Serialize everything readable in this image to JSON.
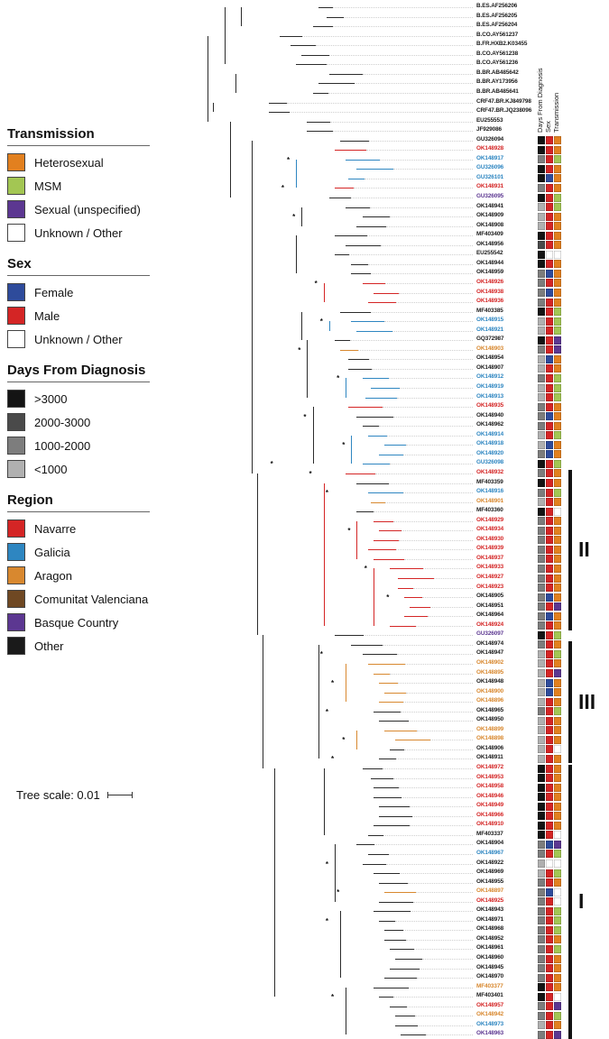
{
  "legend": {
    "sections": [
      {
        "id": "transmission",
        "title": "Transmission",
        "items": [
          {
            "label": "Heterosexual",
            "color": "#E2801F"
          },
          {
            "label": "MSM",
            "color": "#A3C653"
          },
          {
            "label": "Sexual (unspecified)",
            "color": "#5C3791"
          },
          {
            "label": "Unknown / Other",
            "color": "#FFFFFF"
          }
        ]
      },
      {
        "id": "sex",
        "title": "Sex",
        "items": [
          {
            "label": "Female",
            "color": "#2E4B9B"
          },
          {
            "label": "Male",
            "color": "#D42525"
          },
          {
            "label": "Unknown / Other",
            "color": "#FFFFFF"
          }
        ]
      },
      {
        "id": "days",
        "title": "Days From Diagnosis",
        "items": [
          {
            "label": ">3000",
            "color": "#141414"
          },
          {
            "label": "2000-3000",
            "color": "#4A4A4A"
          },
          {
            "label": "1000-2000",
            "color": "#7D7D7D"
          },
          {
            "label": "<1000",
            "color": "#B0B0B0"
          }
        ]
      },
      {
        "id": "region",
        "title": "Region",
        "items": [
          {
            "label": "Navarre",
            "color": "#D42525"
          },
          {
            "label": "Galicia",
            "color": "#2E86C1"
          },
          {
            "label": "Aragon",
            "color": "#D8882F"
          },
          {
            "label": "Comunitat Valenciana",
            "color": "#6F4823"
          },
          {
            "label": "Basque Country",
            "color": "#5C3791"
          },
          {
            "label": "Other",
            "color": "#1A1A1A"
          }
        ]
      }
    ],
    "scale_label": "Tree scale: 0.01"
  },
  "annotation_headers": [
    "Days From Diagnosis",
    "Sex",
    "Transmission"
  ],
  "clades": [
    {
      "label": "II",
      "from": 49,
      "to": 65
    },
    {
      "label": "III",
      "from": 67,
      "to": 79
    },
    {
      "label": "I",
      "from": 80,
      "to": 108
    }
  ],
  "codes": {
    "region": {
      "nav": "Navarre",
      "gal": "Galicia",
      "ara": "Aragon",
      "val": "Comunitat Valenciana",
      "bas": "Basque Country",
      "oth": "Other"
    },
    "days": {
      "a": ">3000",
      "b": "2000-3000",
      "c": "1000-2000",
      "d": "<1000"
    },
    "sex": {
      "f": "Female",
      "m": "Male",
      "u": "Unknown / Other"
    },
    "transmission": {
      "h": "Heterosexual",
      "g": "MSM",
      "p": "Sexual (unspecified)",
      "u": "Unknown / Other"
    }
  },
  "colors": {
    "days": {
      "a": "#141414",
      "b": "#4A4A4A",
      "c": "#7D7D7D",
      "d": "#B0B0B0"
    },
    "sex": {
      "f": "#2E4B9B",
      "m": "#D42525",
      "u": "#FFFFFF"
    },
    "transmission": {
      "h": "#E2801F",
      "g": "#A3C653",
      "p": "#5C3791",
      "u": "#FFFFFF"
    },
    "region": {
      "nav": "#D42525",
      "gal": "#2E86C1",
      "ara": "#D8882F",
      "val": "#6F4823",
      "bas": "#5C3791",
      "oth": "#1A1A1A"
    },
    "branch_default": "#2B2B2B",
    "leader": "#CFCFCF"
  },
  "taxa_fields": [
    "label",
    "region",
    "bold",
    "depth",
    "days",
    "sex",
    "transmission",
    "branch_color"
  ],
  "taxa": [
    [
      "B.ES.AF256206",
      "oth",
      0,
      0.44,
      null,
      null,
      null,
      null
    ],
    [
      "B.ES.AF256205",
      "oth",
      0,
      0.47,
      null,
      null,
      null,
      null
    ],
    [
      "B.ES.AF256204",
      "oth",
      0,
      0.42,
      null,
      null,
      null,
      null
    ],
    [
      "B.CO.AY561237",
      "oth",
      0,
      0.3,
      null,
      null,
      null,
      null
    ],
    [
      "B.FR.HXB2.K03455",
      "oth",
      1,
      0.34,
      null,
      null,
      null,
      null
    ],
    [
      "B.CO.AY561238",
      "oth",
      0,
      0.38,
      null,
      null,
      null,
      null
    ],
    [
      "B.CO.AY561236",
      "oth",
      0,
      0.36,
      null,
      null,
      null,
      null
    ],
    [
      "B.BR.AB485642",
      "oth",
      0,
      0.48,
      null,
      null,
      null,
      null
    ],
    [
      "B.BR.AY173956",
      "oth",
      0,
      0.44,
      null,
      null,
      null,
      null
    ],
    [
      "B.BR.AB485641",
      "oth",
      0,
      0.42,
      null,
      null,
      null,
      null
    ],
    [
      "CRF47.BR.KJ849798",
      "oth",
      0,
      0.26,
      null,
      null,
      null,
      null
    ],
    [
      "CRF47.BR.JQ238096",
      "oth",
      0,
      0.26,
      null,
      null,
      null,
      null
    ],
    [
      "EU255553",
      "oth",
      1,
      0.4,
      null,
      null,
      null,
      null
    ],
    [
      "JF929086",
      "oth",
      1,
      0.4,
      null,
      null,
      null,
      null
    ],
    [
      "GU326094",
      "oth",
      0,
      0.52,
      "a",
      "m",
      "h",
      null
    ],
    [
      "OK148928",
      "nav",
      0,
      0.5,
      "a",
      "m",
      "h",
      "nav"
    ],
    [
      "OK148917",
      "gal",
      0,
      0.54,
      "c",
      "m",
      "g",
      "gal"
    ],
    [
      "GU326096",
      "gal",
      0,
      0.58,
      "a",
      "m",
      "h",
      "gal"
    ],
    [
      "GU326101",
      "gal",
      0,
      0.55,
      "a",
      "f",
      "h",
      "gal"
    ],
    [
      "OK148931",
      "nav",
      0,
      0.5,
      "c",
      "m",
      "h",
      "nav"
    ],
    [
      "GU326095",
      "bas",
      0,
      0.48,
      "a",
      "m",
      "g",
      null
    ],
    [
      "OK148941",
      "oth",
      0,
      0.54,
      "d",
      "m",
      "g",
      null
    ],
    [
      "OK148909",
      "oth",
      0,
      0.6,
      "d",
      "m",
      "h",
      null
    ],
    [
      "OK148908",
      "oth",
      0,
      0.58,
      "d",
      "m",
      "h",
      null
    ],
    [
      "MF403409",
      "oth",
      0,
      0.5,
      "a",
      "m",
      "h",
      null
    ],
    [
      "OK148956",
      "oth",
      0,
      0.54,
      "b",
      "m",
      "h",
      null
    ],
    [
      "EU255542",
      "oth",
      1,
      0.5,
      "a",
      "u",
      "u",
      null
    ],
    [
      "OK148944",
      "oth",
      0,
      0.56,
      "a",
      "m",
      "h",
      null
    ],
    [
      "OK148959",
      "oth",
      0,
      0.56,
      "c",
      "f",
      "h",
      null
    ],
    [
      "OK148926",
      "nav",
      0,
      0.6,
      "c",
      "m",
      "h",
      "nav"
    ],
    [
      "OK148938",
      "nav",
      0,
      0.64,
      "c",
      "f",
      "h",
      "nav"
    ],
    [
      "OK148936",
      "nav",
      0,
      0.62,
      "c",
      "m",
      "h",
      "nav"
    ],
    [
      "MF403385",
      "oth",
      0,
      0.52,
      "a",
      "m",
      "g",
      null
    ],
    [
      "OK148915",
      "gal",
      0,
      0.56,
      "d",
      "m",
      "g",
      "gal"
    ],
    [
      "OK148921",
      "gal",
      0,
      0.58,
      "d",
      "m",
      "g",
      "gal"
    ],
    [
      "GQ372987",
      "oth",
      0,
      0.5,
      "a",
      "m",
      "p",
      null
    ],
    [
      "OK148903",
      "ara",
      0,
      0.52,
      "c",
      "m",
      "p",
      "ara"
    ],
    [
      "OK148954",
      "oth",
      0,
      0.55,
      "d",
      "f",
      "h",
      null
    ],
    [
      "OK148907",
      "oth",
      0,
      0.55,
      "d",
      "m",
      "h",
      null
    ],
    [
      "OK148912",
      "gal",
      0,
      0.6,
      "c",
      "m",
      "g",
      "gal"
    ],
    [
      "OK148919",
      "gal",
      0,
      0.63,
      "d",
      "m",
      "g",
      "gal"
    ],
    [
      "OK148913",
      "gal",
      0,
      0.61,
      "d",
      "m",
      "g",
      "gal"
    ],
    [
      "OK148935",
      "nav",
      0,
      0.55,
      "c",
      "m",
      "h",
      "nav"
    ],
    [
      "OK148940",
      "oth",
      0,
      0.58,
      "c",
      "f",
      "h",
      null
    ],
    [
      "OK148962",
      "oth",
      0,
      0.6,
      "c",
      "m",
      "h",
      null
    ],
    [
      "OK148914",
      "gal",
      0,
      0.62,
      "d",
      "m",
      "g",
      "gal"
    ],
    [
      "OK148918",
      "gal",
      0,
      0.68,
      "d",
      "f",
      "h",
      "gal"
    ],
    [
      "OK148920",
      "gal",
      0,
      0.66,
      "c",
      "f",
      "h",
      "gal"
    ],
    [
      "GU326098",
      "gal",
      0,
      0.6,
      "a",
      "m",
      "g",
      "gal"
    ],
    [
      "OK148932",
      "nav",
      0,
      0.54,
      "c",
      "m",
      "h",
      "nav"
    ],
    [
      "MF403359",
      "oth",
      0,
      0.58,
      "a",
      "m",
      "h",
      null
    ],
    [
      "OK148916",
      "gal",
      0,
      0.62,
      "c",
      "m",
      "g",
      "gal"
    ],
    [
      "OK148901",
      "ara",
      0,
      0.63,
      "d",
      "m",
      "h",
      "ara"
    ],
    [
      "MF403360",
      "oth",
      0,
      0.58,
      "a",
      "m",
      "u",
      null
    ],
    [
      "OK148929",
      "nav",
      0,
      0.64,
      "c",
      "m",
      "h",
      "nav"
    ],
    [
      "OK148934",
      "nav",
      0,
      0.66,
      "c",
      "m",
      "h",
      "nav"
    ],
    [
      "OK148930",
      "nav",
      0,
      0.64,
      "c",
      "m",
      "h",
      "nav"
    ],
    [
      "OK148939",
      "nav",
      0,
      0.62,
      "c",
      "m",
      "h",
      "nav"
    ],
    [
      "OK148937",
      "nav",
      0,
      0.64,
      "c",
      "m",
      "h",
      "nav"
    ],
    [
      "OK148933",
      "nav",
      0,
      0.7,
      "c",
      "m",
      "h",
      "nav"
    ],
    [
      "OK148927",
      "nav",
      0,
      0.73,
      "c",
      "m",
      "h",
      "nav"
    ],
    [
      "OK148923",
      "nav",
      0,
      0.73,
      "c",
      "m",
      "h",
      "nav"
    ],
    [
      "OK148905",
      "oth",
      1,
      0.75,
      "c",
      "f",
      "h",
      "nav"
    ],
    [
      "OK148951",
      "oth",
      0,
      0.77,
      "c",
      "m",
      "p",
      "nav"
    ],
    [
      "OK148964",
      "oth",
      0,
      0.75,
      "c",
      "f",
      "h",
      "nav"
    ],
    [
      "OK148924",
      "nav",
      0,
      0.7,
      "c",
      "m",
      "h",
      "nav"
    ],
    [
      "GU326097",
      "bas",
      0,
      0.5,
      "a",
      "m",
      "g",
      null
    ],
    [
      "OK148974",
      "oth",
      0,
      0.56,
      "c",
      "m",
      "h",
      null
    ],
    [
      "OK148947",
      "oth",
      0,
      0.6,
      "d",
      "m",
      "g",
      null
    ],
    [
      "OK148902",
      "ara",
      0,
      0.62,
      "d",
      "m",
      "h",
      "ara"
    ],
    [
      "OK148895",
      "ara",
      0,
      0.64,
      "d",
      "m",
      "p",
      "ara"
    ],
    [
      "OK148948",
      "oth",
      0,
      0.66,
      "d",
      "f",
      "h",
      "ara"
    ],
    [
      "OK148900",
      "ara",
      0,
      0.68,
      "d",
      "f",
      "h",
      "ara"
    ],
    [
      "OK148896",
      "ara",
      0,
      0.66,
      "d",
      "m",
      "h",
      "ara"
    ],
    [
      "OK148965",
      "oth",
      0,
      0.64,
      "c",
      "m",
      "g",
      null
    ],
    [
      "OK148950",
      "oth",
      0,
      0.66,
      "d",
      "m",
      "h",
      null
    ],
    [
      "OK148899",
      "ara",
      0,
      0.68,
      "d",
      "m",
      "h",
      "ara"
    ],
    [
      "OK148898",
      "ara",
      0,
      0.72,
      "d",
      "m",
      "h",
      "ara"
    ],
    [
      "OK148906",
      "oth",
      0,
      0.7,
      "d",
      "m",
      "u",
      null
    ],
    [
      "OK148911",
      "oth",
      0,
      0.66,
      "d",
      "m",
      "h",
      null
    ],
    [
      "OK148972",
      "nav",
      0,
      0.6,
      "a",
      "m",
      "h",
      null
    ],
    [
      "OK148953",
      "nav",
      0,
      0.63,
      "a",
      "m",
      "h",
      null
    ],
    [
      "OK148958",
      "nav",
      0,
      0.64,
      "a",
      "m",
      "h",
      null
    ],
    [
      "OK148946",
      "nav",
      0,
      0.64,
      "a",
      "m",
      "h",
      null
    ],
    [
      "OK148949",
      "nav",
      0,
      0.66,
      "a",
      "m",
      "h",
      null
    ],
    [
      "OK148966",
      "nav",
      0,
      0.66,
      "a",
      "m",
      "h",
      null
    ],
    [
      "OK148910",
      "nav",
      0,
      0.64,
      "a",
      "m",
      "h",
      null
    ],
    [
      "MF403337",
      "oth",
      0,
      0.62,
      "a",
      "m",
      "u",
      null
    ],
    [
      "OK148904",
      "oth",
      1,
      0.58,
      "c",
      "f",
      "p",
      null
    ],
    [
      "OK148967",
      "gal",
      0,
      0.62,
      "c",
      "m",
      "g",
      null
    ],
    [
      "OK148922",
      "oth",
      1,
      0.6,
      "d",
      "u",
      "u",
      null
    ],
    [
      "OK148969",
      "oth",
      0,
      0.64,
      "d",
      "m",
      "g",
      null
    ],
    [
      "OK148955",
      "oth",
      0,
      0.66,
      "c",
      "m",
      "h",
      null
    ],
    [
      "OK148897",
      "ara",
      0,
      0.68,
      "c",
      "f",
      "u",
      "ara"
    ],
    [
      "OK148925",
      "nav",
      0,
      0.66,
      "c",
      "m",
      "u",
      null
    ],
    [
      "OK148943",
      "oth",
      0,
      0.64,
      "c",
      "m",
      "g",
      null
    ],
    [
      "OK148971",
      "oth",
      0,
      0.66,
      "c",
      "m",
      "g",
      null
    ],
    [
      "OK148968",
      "oth",
      0,
      0.68,
      "c",
      "m",
      "g",
      null
    ],
    [
      "OK148952",
      "oth",
      0,
      0.68,
      "c",
      "m",
      "h",
      null
    ],
    [
      "OK148961",
      "oth",
      0,
      0.7,
      "c",
      "m",
      "g",
      null
    ],
    [
      "OK148960",
      "oth",
      0,
      0.72,
      "c",
      "m",
      "h",
      null
    ],
    [
      "OK148945",
      "oth",
      0,
      0.7,
      "c",
      "m",
      "h",
      null
    ],
    [
      "OK148970",
      "oth",
      0,
      0.68,
      "c",
      "m",
      "h",
      null
    ],
    [
      "MF403377",
      "ara",
      0,
      0.64,
      "a",
      "m",
      "h",
      null
    ],
    [
      "MF403401",
      "oth",
      0,
      0.66,
      "a",
      "m",
      "u",
      null
    ],
    [
      "OK148957",
      "nav",
      0,
      0.7,
      "c",
      "m",
      "p",
      null
    ],
    [
      "OK148942",
      "ara",
      0,
      0.72,
      "c",
      "m",
      "g",
      null
    ],
    [
      "OK148973",
      "gal",
      0,
      0.72,
      "d",
      "m",
      "h",
      null
    ],
    [
      "OK148963",
      "bas",
      0,
      0.74,
      "c",
      "m",
      "p",
      null
    ]
  ],
  "spines": [
    [
      0.04,
      3,
      12,
      null
    ],
    [
      0.1,
      0,
      6,
      null
    ],
    [
      0.16,
      0,
      2,
      null
    ],
    [
      0.14,
      7,
      9,
      null
    ],
    [
      0.06,
      10,
      11,
      null
    ],
    [
      0.12,
      12,
      20,
      null
    ],
    [
      0.2,
      14,
      49,
      null
    ],
    [
      0.22,
      49,
      66,
      null
    ],
    [
      0.24,
      66,
      80,
      null
    ],
    [
      0.28,
      80,
      104,
      null
    ],
    [
      0.36,
      16,
      19,
      "gal"
    ],
    [
      0.38,
      21,
      23,
      null
    ],
    [
      0.36,
      24,
      28,
      null
    ],
    [
      0.46,
      29,
      31,
      "nav"
    ],
    [
      0.38,
      32,
      35,
      null
    ],
    [
      0.48,
      33,
      34,
      "gal"
    ],
    [
      0.4,
      35,
      41,
      null
    ],
    [
      0.54,
      39,
      41,
      "gal"
    ],
    [
      0.42,
      42,
      48,
      null
    ],
    [
      0.56,
      45,
      48,
      "gal"
    ],
    [
      0.46,
      50,
      65,
      "nav"
    ],
    [
      0.58,
      54,
      58,
      "nav"
    ],
    [
      0.64,
      59,
      65,
      "nav"
    ],
    [
      0.44,
      67,
      79,
      null
    ],
    [
      0.54,
      69,
      73,
      "ara"
    ],
    [
      0.58,
      76,
      78,
      "ara"
    ],
    [
      0.46,
      80,
      87,
      null
    ],
    [
      0.5,
      88,
      94,
      null
    ],
    [
      0.52,
      95,
      102,
      null
    ],
    [
      0.54,
      103,
      108,
      null
    ]
  ],
  "asterisks": [
    [
      16,
      0.34
    ],
    [
      19,
      0.32
    ],
    [
      22,
      0.36
    ],
    [
      29,
      0.44
    ],
    [
      33,
      0.46
    ],
    [
      36,
      0.38
    ],
    [
      39,
      0.52
    ],
    [
      43,
      0.4
    ],
    [
      46,
      0.54
    ],
    [
      48,
      0.28
    ],
    [
      49,
      0.42
    ],
    [
      51,
      0.48
    ],
    [
      55,
      0.56
    ],
    [
      59,
      0.62
    ],
    [
      62,
      0.7
    ],
    [
      68,
      0.46
    ],
    [
      71,
      0.5
    ],
    [
      74,
      0.48
    ],
    [
      77,
      0.54
    ],
    [
      79,
      0.5
    ],
    [
      90,
      0.48
    ],
    [
      93,
      0.52
    ],
    [
      96,
      0.48
    ],
    [
      104,
      0.5
    ]
  ]
}
